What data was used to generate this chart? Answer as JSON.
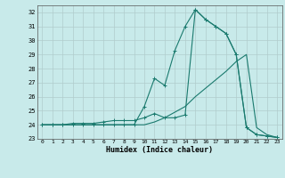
{
  "xlabel": "Humidex (Indice chaleur)",
  "background_color": "#c8eaea",
  "grid_color": "#b0cccc",
  "line_color": "#1a7a6e",
  "xlim": [
    -0.5,
    23.5
  ],
  "ylim": [
    23,
    32.5
  ],
  "xticks": [
    0,
    1,
    2,
    3,
    4,
    5,
    6,
    7,
    8,
    9,
    10,
    11,
    12,
    13,
    14,
    15,
    16,
    17,
    18,
    19,
    20,
    21,
    22,
    23
  ],
  "yticks": [
    23,
    24,
    25,
    26,
    27,
    28,
    29,
    30,
    31,
    32
  ],
  "curve1_x": [
    0,
    1,
    2,
    3,
    4,
    5,
    6,
    7,
    8,
    9,
    10,
    11,
    12,
    13,
    14,
    15,
    16,
    17,
    18,
    19,
    20,
    21,
    22,
    23
  ],
  "curve1_y": [
    24.0,
    24.0,
    24.0,
    24.1,
    24.1,
    24.1,
    24.2,
    24.3,
    24.3,
    24.3,
    24.5,
    24.8,
    24.5,
    24.5,
    24.7,
    32.2,
    31.5,
    31.0,
    30.5,
    29.0,
    23.8,
    23.3,
    23.2,
    23.1
  ],
  "curve2_x": [
    0,
    1,
    2,
    3,
    4,
    5,
    6,
    7,
    8,
    9,
    10,
    11,
    12,
    13,
    14,
    15,
    16,
    17,
    18,
    19,
    20,
    21,
    22,
    23
  ],
  "curve2_y": [
    24.0,
    24.0,
    24.0,
    24.0,
    24.0,
    24.0,
    24.0,
    24.0,
    24.0,
    24.0,
    24.0,
    24.2,
    24.5,
    24.9,
    25.3,
    26.0,
    26.6,
    27.2,
    27.8,
    28.5,
    29.0,
    23.8,
    23.3,
    23.1
  ],
  "curve3_x": [
    0,
    1,
    2,
    3,
    4,
    5,
    6,
    7,
    8,
    9,
    10,
    11,
    12,
    13,
    14,
    15,
    16,
    17,
    18,
    19,
    20,
    21,
    22,
    23
  ],
  "curve3_y": [
    24.0,
    24.0,
    24.0,
    24.0,
    24.0,
    24.0,
    24.0,
    24.0,
    24.0,
    24.0,
    25.3,
    27.3,
    26.8,
    29.3,
    31.0,
    32.2,
    31.5,
    31.0,
    30.5,
    29.0,
    23.8,
    23.3,
    23.2,
    23.1
  ]
}
